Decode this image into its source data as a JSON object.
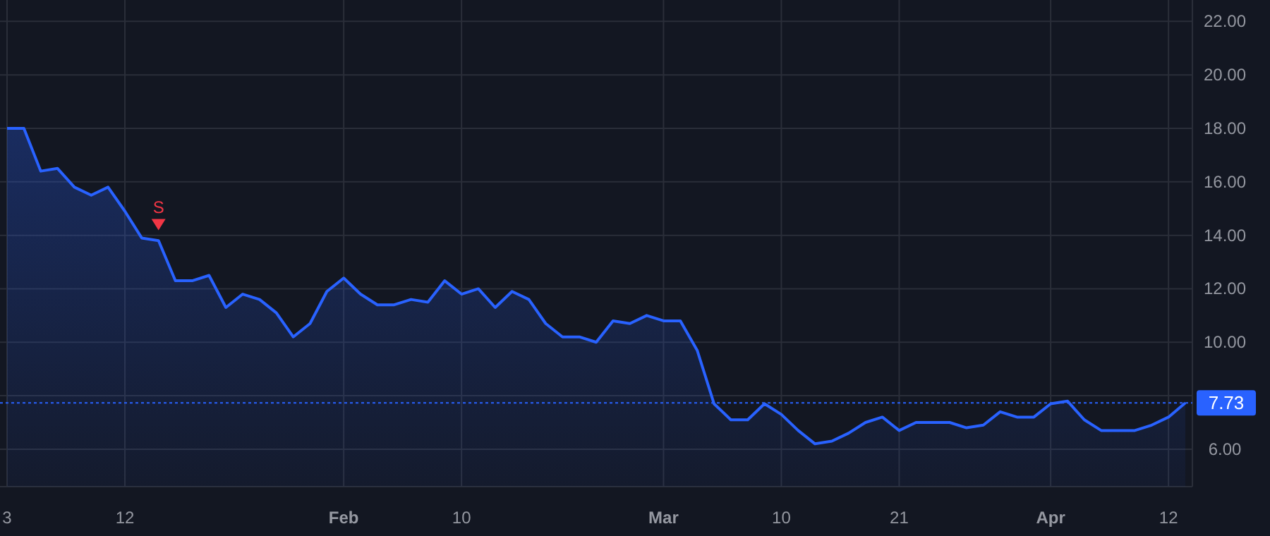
{
  "chart_data": {
    "type": "area",
    "categories": [
      "3",
      null,
      null,
      null,
      null,
      null,
      null,
      "12",
      null,
      null,
      null,
      null,
      null,
      null,
      null,
      null,
      null,
      null,
      null,
      null,
      "Feb",
      null,
      null,
      null,
      null,
      null,
      null,
      "10",
      null,
      null,
      null,
      null,
      null,
      null,
      null,
      null,
      null,
      null,
      null,
      "Mar",
      null,
      null,
      null,
      null,
      null,
      null,
      "10",
      null,
      null,
      null,
      null,
      null,
      null,
      "21",
      null,
      null,
      null,
      null,
      null,
      null,
      null,
      null,
      "Apr",
      null,
      null,
      null,
      null,
      null,
      null,
      "12",
      null
    ],
    "series": [
      {
        "color": "#2962ff",
        "values": [
          18.0,
          18.0,
          16.4,
          16.5,
          15.8,
          15.5,
          15.8,
          14.9,
          13.9,
          13.8,
          12.3,
          12.3,
          12.5,
          11.3,
          11.8,
          11.6,
          11.1,
          10.2,
          10.7,
          11.9,
          12.4,
          11.8,
          11.4,
          11.4,
          11.6,
          11.5,
          12.3,
          11.8,
          12.0,
          11.3,
          11.9,
          11.6,
          10.7,
          10.2,
          10.2,
          10.0,
          10.8,
          10.7,
          11.0,
          10.8,
          10.8,
          9.7,
          7.7,
          7.1,
          7.1,
          7.7,
          7.3,
          6.7,
          6.2,
          6.3,
          6.6,
          7.0,
          7.2,
          6.7,
          7.0,
          7.0,
          7.0,
          6.8,
          6.9,
          7.4,
          7.2,
          7.2,
          7.7,
          7.8,
          7.1,
          6.7,
          6.7,
          6.7,
          6.9,
          7.2,
          7.73
        ]
      },
      {
        "type": "scatter",
        "name": "S",
        "color": "#f23645",
        "marker": "triangle",
        "values": [
          null,
          null,
          null,
          null,
          null,
          null,
          null,
          null,
          null,
          14.4,
          null,
          null,
          null,
          null,
          null,
          null,
          null,
          null,
          null,
          null,
          null,
          null,
          null,
          null,
          null,
          null,
          null,
          null,
          null,
          null,
          null,
          null,
          null,
          null,
          null,
          null,
          null,
          null,
          null,
          null,
          null,
          null,
          null,
          null,
          null,
          null,
          null,
          null,
          null,
          null,
          null,
          null,
          null,
          null,
          null,
          null,
          null,
          null,
          null,
          null,
          null,
          null,
          null,
          null,
          null,
          null,
          null,
          null,
          null,
          null,
          null
        ]
      }
    ],
    "ylim": [
      4.6,
      22.8
    ],
    "yticks": [
      {
        "value": 6,
        "label": "6.00"
      },
      {
        "value": 8,
        "label": null
      },
      {
        "value": 10,
        "label": "10.00"
      },
      {
        "value": 12,
        "label": "12.00"
      },
      {
        "value": 14,
        "label": "14.00"
      },
      {
        "value": 16,
        "label": "16.00"
      },
      {
        "value": 18,
        "label": "18.00"
      },
      {
        "value": 20,
        "label": "20.00"
      },
      {
        "value": 22,
        "label": "22.00"
      }
    ],
    "ref_lines": [
      {
        "axis": "y",
        "value": 7.73,
        "label": "7.73",
        "color": "#2962ff",
        "line_style": "dotted"
      }
    ],
    "grid": true,
    "marker": "none"
  }
}
